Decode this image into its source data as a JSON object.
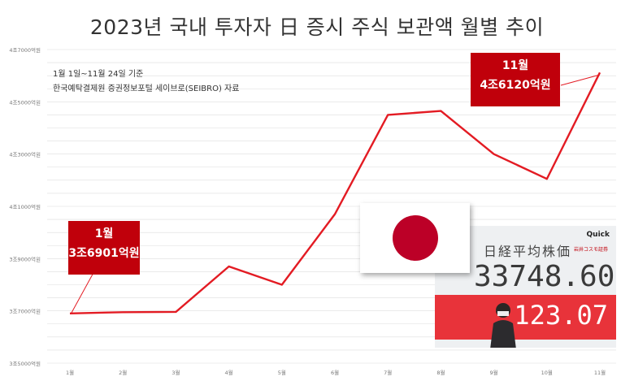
{
  "title": "2023년 국내 투자자 日 증시 주식 보관액 월별 추이",
  "notes": {
    "period": "1월 1일~11월 24일 기준",
    "source": "한국예탁결제원 증권정보포털 세이브로(SEIBRO) 자료"
  },
  "callouts": {
    "start": {
      "month": "1월",
      "value": "3조6901억원"
    },
    "end": {
      "month": "11월",
      "value": "4조6120억원"
    }
  },
  "photo_board": {
    "brand": "Quick",
    "label": "日経平均株価",
    "sponsor": "岩井コスモ証券",
    "price": "33748.60",
    "change": "123.07"
  },
  "colors": {
    "line": "#e31b23",
    "callout": "#c0000b",
    "grid": "#dddddd"
  },
  "chart_data": {
    "type": "line",
    "categories": [
      "1월",
      "2월",
      "3월",
      "4월",
      "5월",
      "6월",
      "7월",
      "8월",
      "9월",
      "10월",
      "11월"
    ],
    "values": [
      36901,
      36950,
      36960,
      38700,
      38000,
      40700,
      44500,
      44650,
      43000,
      42050,
      46120
    ],
    "ylim": [
      35000,
      47000
    ],
    "yticks": [
      35000,
      37000,
      39000,
      41000,
      43000,
      45000,
      47000
    ],
    "ytick_labels": [
      "3조5000억원",
      "3조7000억원",
      "3조9000억원",
      "4조1000억원",
      "4조3000억원",
      "4조5000억원",
      "4조7000억원"
    ],
    "grid": true,
    "line_color": "#e31b23"
  }
}
